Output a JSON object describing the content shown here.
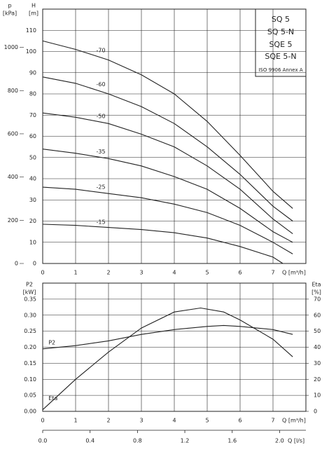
{
  "chart_data": [
    {
      "type": "line",
      "y_label": "H",
      "y_unit": "[m]",
      "y2_label": "p",
      "y2_unit": "[kPa]",
      "x_label": "Q [m³/h]",
      "product_labels": [
        "SQ 5",
        "SQ 5-N",
        "SQE 5",
        "SQE 5-N",
        "ISO 9906 Annex A"
      ],
      "xlim": [
        0,
        8
      ],
      "xticks": [
        0,
        1,
        2,
        3,
        4,
        5,
        6,
        7
      ],
      "ylim": [
        0,
        120
      ],
      "yticks": [
        0,
        10,
        20,
        30,
        40,
        50,
        60,
        70,
        80,
        90,
        100,
        110
      ],
      "y2lim": [
        0,
        1177
      ],
      "y2ticks": [
        0,
        200,
        400,
        600,
        800,
        1000
      ],
      "grid": true,
      "color": "#222222",
      "series": [
        {
          "name": "-70",
          "x": [
            0,
            1,
            2,
            3,
            4,
            5,
            6,
            7,
            7.6
          ],
          "values": [
            105,
            101,
            96,
            89,
            80,
            67,
            51,
            34,
            26
          ]
        },
        {
          "name": "-60",
          "x": [
            0,
            1,
            2,
            3,
            4,
            5,
            6,
            7,
            7.6
          ],
          "values": [
            88,
            85,
            80,
            74,
            66,
            55,
            42,
            27,
            20
          ]
        },
        {
          "name": "-50",
          "x": [
            0,
            1,
            2,
            3,
            4,
            5,
            6,
            7,
            7.6
          ],
          "values": [
            71,
            69,
            66,
            61,
            55,
            46,
            35,
            21,
            14
          ]
        },
        {
          "name": "-35",
          "x": [
            0,
            1,
            2,
            3,
            4,
            5,
            6,
            7,
            7.6
          ],
          "values": [
            54,
            52,
            49.5,
            46,
            41,
            35,
            26,
            15,
            10
          ]
        },
        {
          "name": "-25",
          "x": [
            0,
            1,
            2,
            3,
            4,
            5,
            6,
            7,
            7.6
          ],
          "values": [
            36,
            35,
            33,
            31,
            28,
            24,
            18,
            10,
            4.5
          ]
        },
        {
          "name": "-15",
          "x": [
            0,
            1,
            2,
            3,
            4,
            5,
            6,
            7,
            7.3
          ],
          "values": [
            18.5,
            18,
            17,
            16,
            14.5,
            12,
            8,
            3,
            0
          ]
        }
      ]
    },
    {
      "type": "line",
      "y_label": "P2",
      "y_unit": "[kW]",
      "y2_label": "Eta",
      "y2_unit": "[%]",
      "x_label": "Q [m³/h]",
      "x2_label": "Q [l/s]",
      "xlim": [
        0,
        8
      ],
      "xticks": [
        0,
        1,
        2,
        3,
        4,
        5,
        6,
        7
      ],
      "x2lim": [
        0,
        2.2222
      ],
      "x2ticks": [
        {
          "value": 0,
          "label": "0.0"
        },
        {
          "value": 0.4,
          "label": "0.4"
        },
        {
          "value": 0.8,
          "label": "0.8"
        },
        {
          "value": 1.2,
          "label": "1.2"
        },
        {
          "value": 1.6,
          "label": "1.6"
        },
        {
          "value": 2.0,
          "label": "2.0"
        }
      ],
      "ylim": [
        0,
        0.4
      ],
      "yticks": [
        {
          "value": 0,
          "label": "0.00"
        },
        {
          "value": 0.05,
          "label": "0.05"
        },
        {
          "value": 0.1,
          "label": "0.10"
        },
        {
          "value": 0.15,
          "label": "0.15"
        },
        {
          "value": 0.2,
          "label": "0.20"
        },
        {
          "value": 0.25,
          "label": "0.25"
        },
        {
          "value": 0.3,
          "label": "0.30"
        },
        {
          "value": 0.35,
          "label": "0.35"
        }
      ],
      "y2lim": [
        0,
        80
      ],
      "y2ticks": [
        0,
        10,
        20,
        30,
        40,
        50,
        60,
        70
      ],
      "grid": true,
      "color": "#222222",
      "series": [
        {
          "name": "P2",
          "x": [
            0,
            1,
            2,
            3,
            4,
            5,
            5.5,
            6,
            7,
            7.6
          ],
          "values": [
            0.195,
            0.205,
            0.22,
            0.24,
            0.255,
            0.265,
            0.268,
            0.265,
            0.255,
            0.24
          ]
        },
        {
          "name": "Eta",
          "axis": "y2",
          "x": [
            0,
            1,
            2,
            3,
            4,
            4.8,
            5.5,
            6,
            7,
            7.6
          ],
          "values": [
            1,
            20,
            37,
            52,
            62,
            64.5,
            62,
            57,
            45,
            34
          ]
        }
      ]
    }
  ]
}
